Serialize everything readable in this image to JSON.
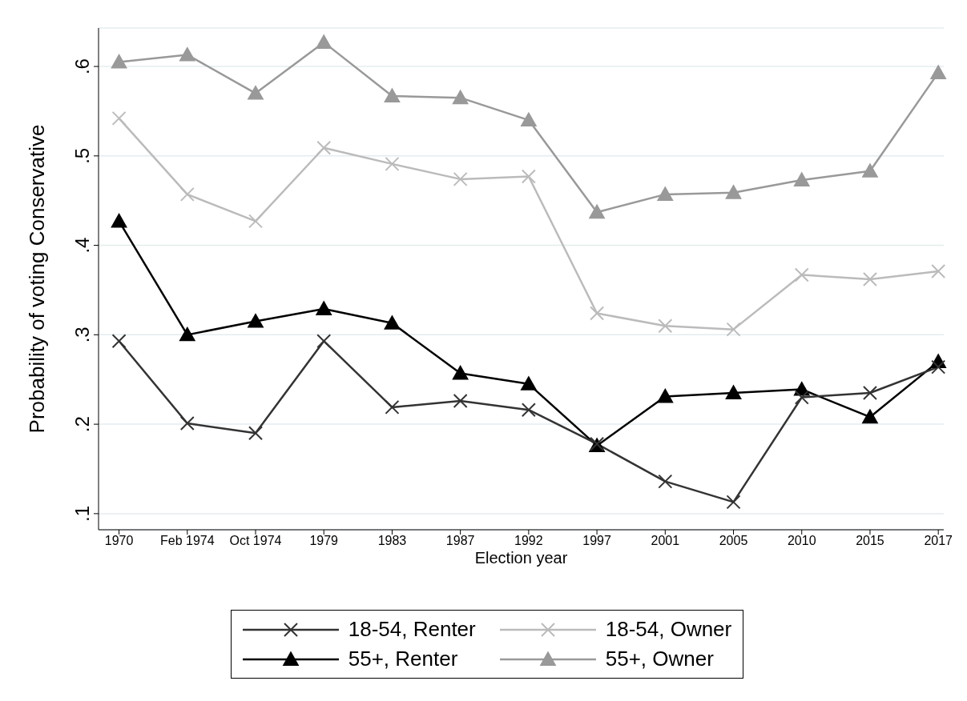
{
  "chart_data": {
    "type": "line",
    "xlabel": "Election year",
    "ylabel": "Probability of voting Conservative",
    "categories": [
      "1970",
      "Feb 1974",
      "Oct 1974",
      "1979",
      "1983",
      "1987",
      "1992",
      "1997",
      "2001",
      "2005",
      "2010",
      "2015",
      "2017"
    ],
    "series": [
      {
        "name": "18-54, Renter",
        "color": "#333333",
        "marker": "cross",
        "values": [
          0.293,
          0.201,
          0.19,
          0.293,
          0.219,
          0.226,
          0.216,
          0.178,
          0.136,
          0.113,
          0.23,
          0.235,
          0.264
        ]
      },
      {
        "name": "18-54, Owner",
        "color": "#bbbbbb",
        "marker": "cross",
        "values": [
          0.542,
          0.457,
          0.427,
          0.509,
          0.491,
          0.474,
          0.477,
          0.324,
          0.31,
          0.306,
          0.367,
          0.362,
          0.371
        ]
      },
      {
        "name": "55+, Renter",
        "color": "#000000",
        "marker": "triangle",
        "values": [
          0.427,
          0.3,
          0.315,
          0.329,
          0.313,
          0.257,
          0.245,
          0.176,
          0.231,
          0.235,
          0.239,
          0.208,
          0.27
        ]
      },
      {
        "name": "55+, Owner",
        "color": "#999999",
        "marker": "triangle",
        "values": [
          0.605,
          0.613,
          0.57,
          0.627,
          0.567,
          0.565,
          0.54,
          0.437,
          0.457,
          0.459,
          0.473,
          0.483,
          0.593
        ]
      }
    ],
    "ylim": [
      0.082,
      0.643
    ],
    "yticks": [
      {
        "value": 0.1,
        "label": ".1"
      },
      {
        "value": 0.2,
        "label": ".2"
      },
      {
        "value": 0.3,
        "label": ".3"
      },
      {
        "value": 0.4,
        "label": ".4"
      },
      {
        "value": 0.5,
        "label": ".5"
      },
      {
        "value": 0.6,
        "label": ".6"
      }
    ],
    "grid": "y",
    "legend": "bottom"
  }
}
